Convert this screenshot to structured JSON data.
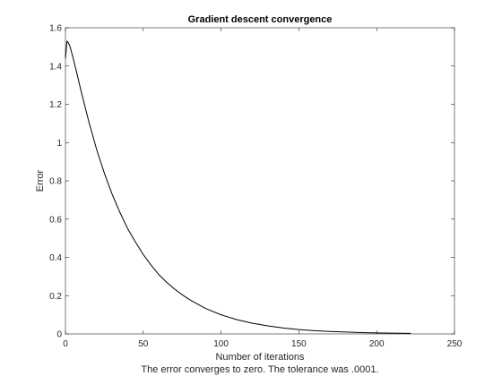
{
  "chart_data": {
    "type": "line",
    "title": "Gradient descent convergence",
    "xlabel": "Number of iterations",
    "xlabel_note": "The error converges to zero. The tolerance was .0001.",
    "ylabel": "Error",
    "xlim": [
      0,
      250
    ],
    "ylim": [
      0,
      1.6
    ],
    "xticks": [
      0,
      50,
      100,
      150,
      200,
      250
    ],
    "yticks": [
      0,
      0.2,
      0.4,
      0.6,
      0.8,
      1,
      1.2,
      1.4,
      1.6
    ],
    "grid": false,
    "line_color": "#000000",
    "series": [
      {
        "x": [
          0,
          1,
          2,
          3,
          5,
          8,
          10,
          15,
          20,
          25,
          30,
          35,
          40,
          45,
          50,
          55,
          60,
          65,
          70,
          75,
          80,
          90,
          100,
          110,
          120,
          130,
          140,
          150,
          160,
          170,
          180,
          190,
          200,
          210,
          222
        ],
        "y": [
          1.44,
          1.53,
          1.52,
          1.5,
          1.44,
          1.34,
          1.27,
          1.11,
          0.965,
          0.84,
          0.73,
          0.635,
          0.55,
          0.48,
          0.415,
          0.36,
          0.31,
          0.27,
          0.235,
          0.205,
          0.178,
          0.133,
          0.1,
          0.075,
          0.056,
          0.042,
          0.031,
          0.023,
          0.017,
          0.013,
          0.01,
          0.007,
          0.005,
          0.004,
          0.003
        ]
      }
    ]
  }
}
